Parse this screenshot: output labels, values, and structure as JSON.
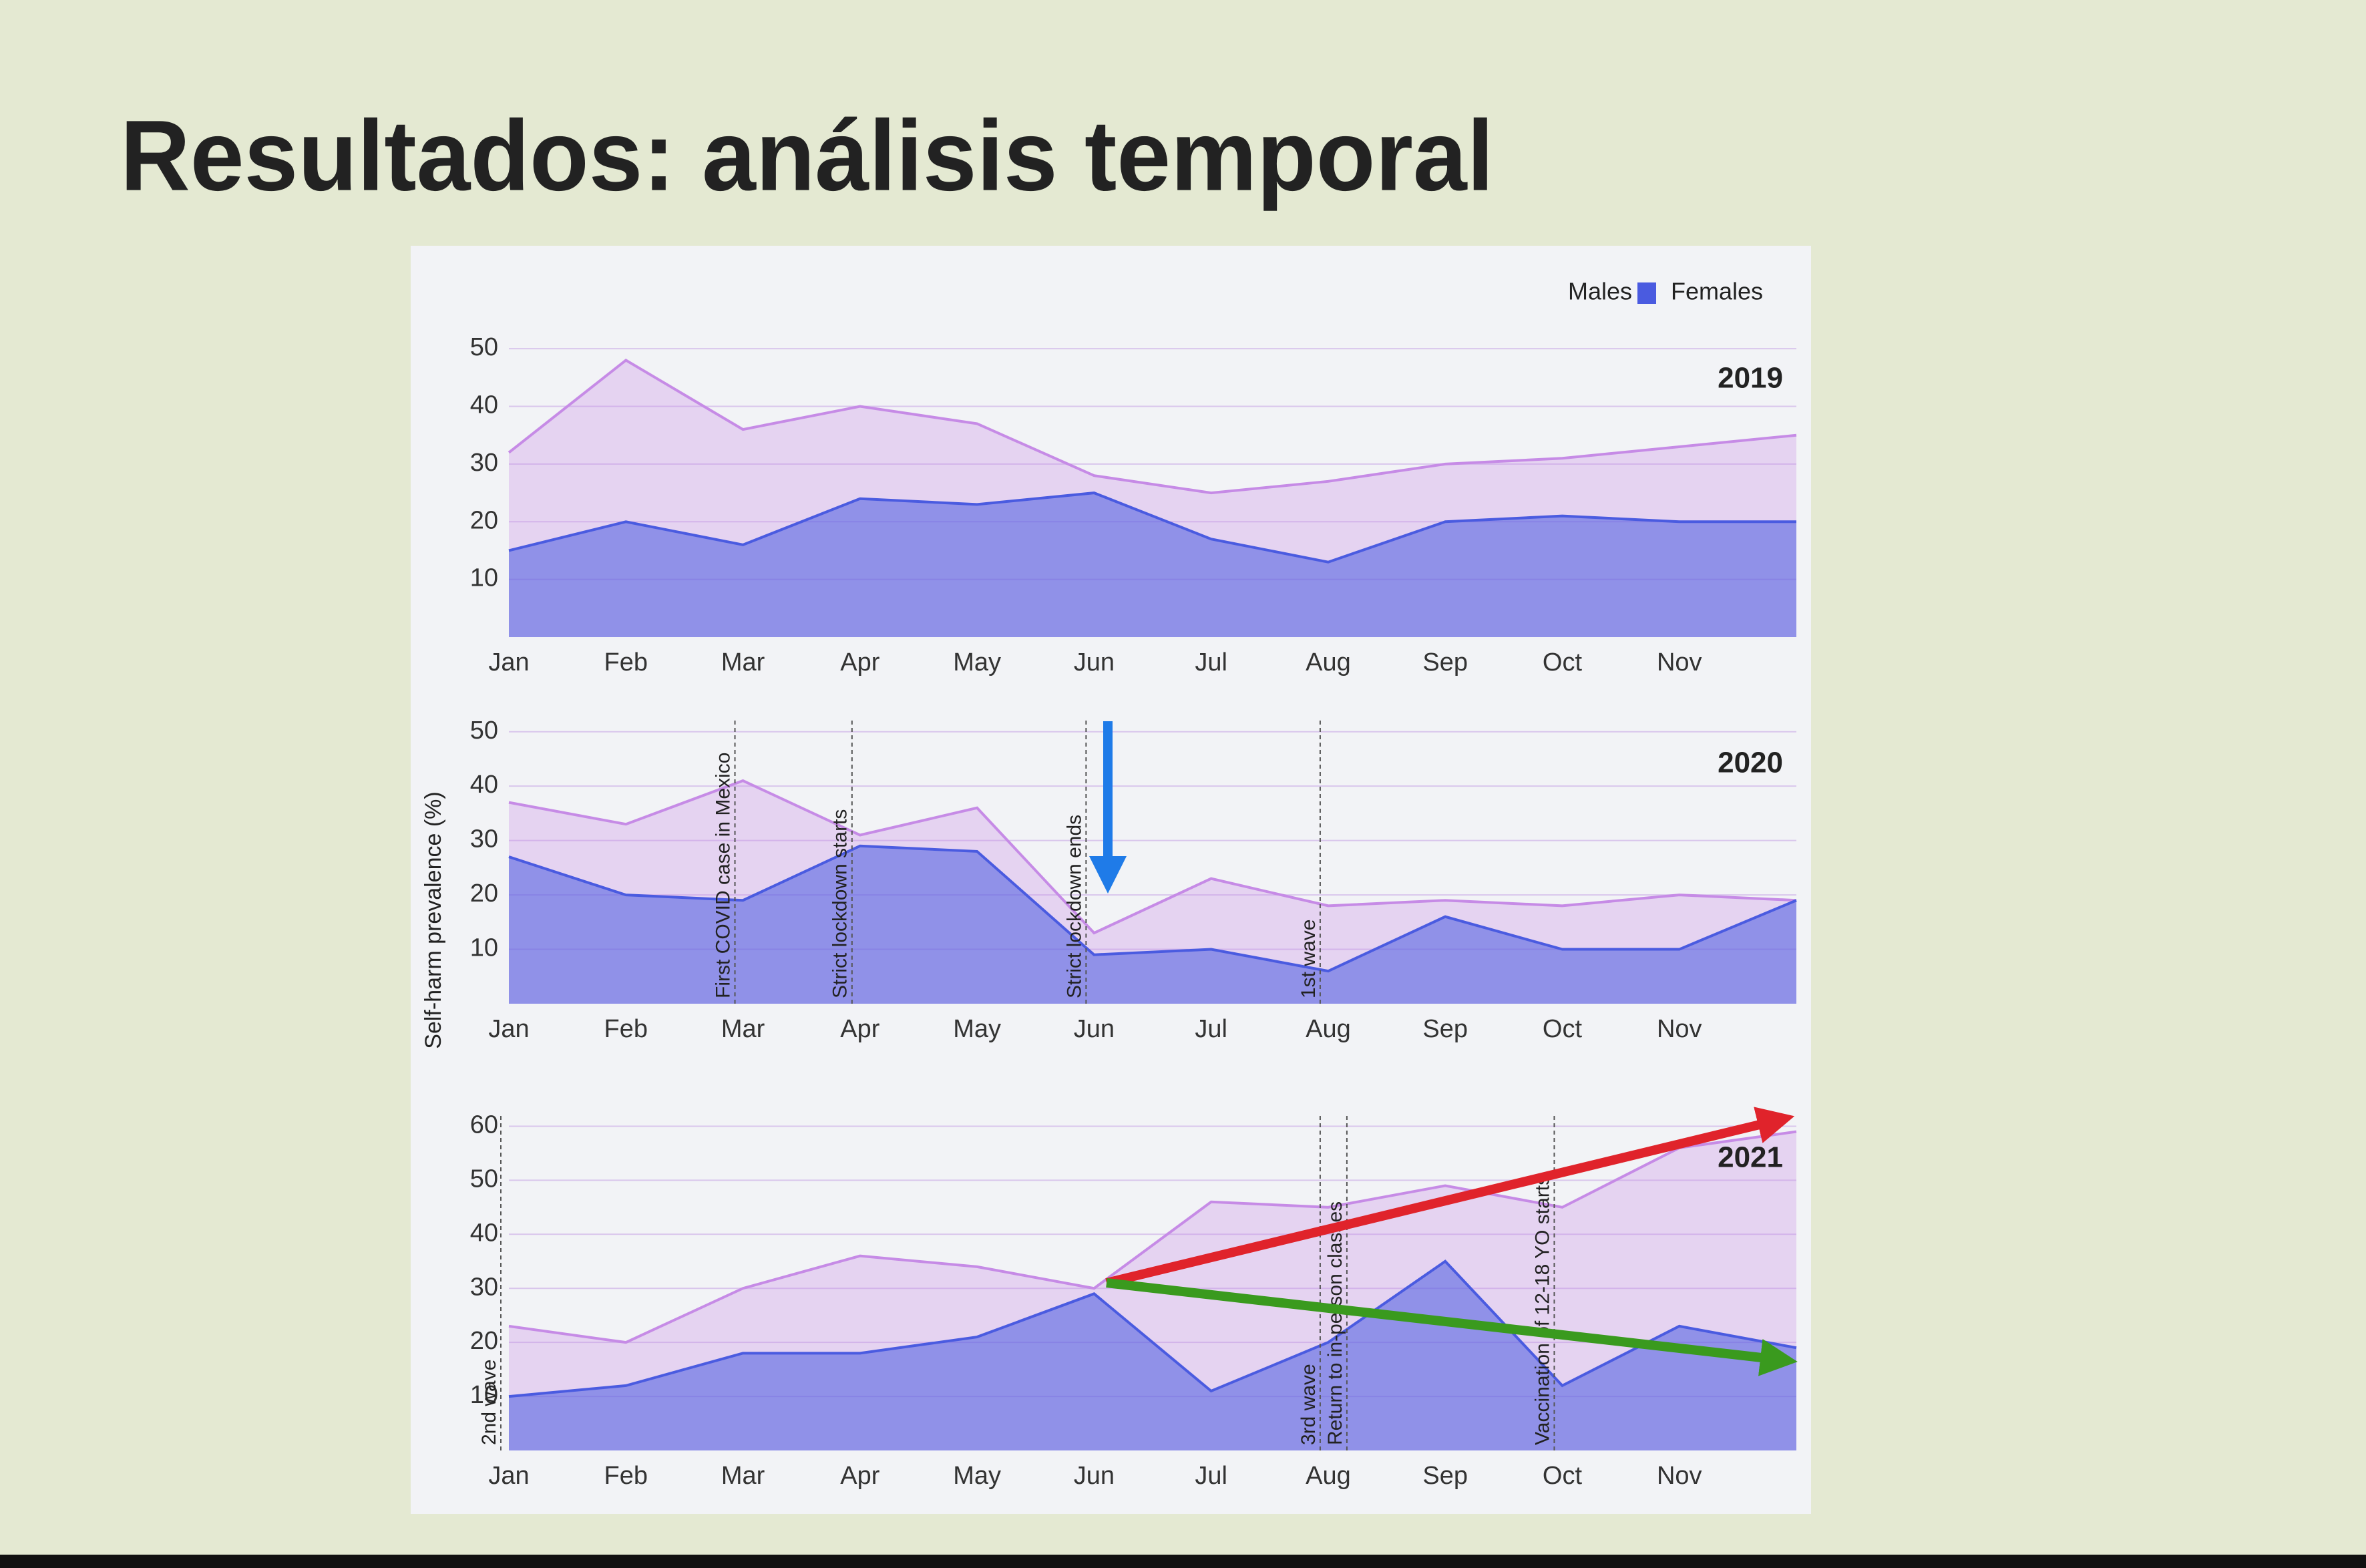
{
  "header": {
    "title": "Resultados: análisis temporal"
  },
  "y_axis_label": "Self-harm prevalence (%)",
  "chart_data": [
    {
      "type": "area",
      "title": "2019",
      "categories": [
        "Jan",
        "Feb",
        "Mar",
        "Apr",
        "May",
        "Jun",
        "Jul",
        "Aug",
        "Sep",
        "Oct",
        "Nov",
        null
      ],
      "series": [
        {
          "name": "Males",
          "color": "#4a5be0",
          "values": [
            15,
            20,
            16,
            24,
            23,
            25,
            17,
            13,
            20,
            21,
            20,
            20
          ]
        },
        {
          "name": "Females",
          "color": "#c68be6",
          "values": [
            32,
            48,
            36,
            40,
            37,
            28,
            25,
            27,
            30,
            31,
            33,
            35
          ]
        }
      ],
      "ylim": [
        0,
        55
      ],
      "yticks": [
        10,
        20,
        30,
        40,
        50
      ],
      "grid": true,
      "legend": "top-right",
      "annotations": []
    },
    {
      "type": "area",
      "title": "2020",
      "categories": [
        "Jan",
        "Feb",
        "Mar",
        "Apr",
        "May",
        "Jun",
        "Jul",
        "Aug",
        "Sep",
        "Oct",
        "Nov",
        null
      ],
      "series": [
        {
          "color": "#4a5be0",
          "values": [
            27,
            20,
            19,
            29,
            28,
            9,
            10,
            6,
            16,
            10,
            10,
            19
          ]
        },
        {
          "color": "#c68be6",
          "values": [
            37,
            33,
            41,
            31,
            36,
            13,
            23,
            18,
            19,
            18,
            20,
            19
          ]
        }
      ],
      "ylim": [
        0,
        55
      ],
      "yticks": [
        10,
        20,
        30,
        40,
        50
      ],
      "grid": true,
      "annotations": [
        {
          "text": "First COVID case in Mexico",
          "category": "Mar"
        },
        {
          "text": "Strict lockdown starts",
          "category": "Apr"
        },
        {
          "text": "Strict lockdown ends",
          "category": "Jun"
        },
        {
          "text": "1st wave",
          "category": "Aug"
        }
      ]
    },
    {
      "type": "area",
      "title": "2021",
      "categories": [
        "Jan",
        "Feb",
        "Mar",
        "Apr",
        "May",
        "Jun",
        "Jul",
        "Aug",
        "Sep",
        "Oct",
        "Nov",
        null
      ],
      "series": [
        {
          "color": "#4a5be0",
          "values": [
            10,
            12,
            18,
            18,
            21,
            29,
            11,
            20,
            35,
            12,
            23,
            19
          ]
        },
        {
          "color": "#c68be6",
          "values": [
            23,
            20,
            30,
            36,
            34,
            30,
            46,
            45,
            49,
            45,
            56,
            59
          ]
        }
      ],
      "ylim": [
        0,
        65
      ],
      "yticks": [
        10,
        20,
        30,
        40,
        50,
        60
      ],
      "grid": true,
      "annotations": [
        {
          "text": "2nd wave",
          "category": "Jan"
        },
        {
          "text": "3rd wave",
          "category": "Aug"
        },
        {
          "text": "Return to in-person classes",
          "category": "Aug"
        },
        {
          "text": "Vaccination of 12-18 YO starts",
          "category": "Oct"
        }
      ]
    }
  ]
}
